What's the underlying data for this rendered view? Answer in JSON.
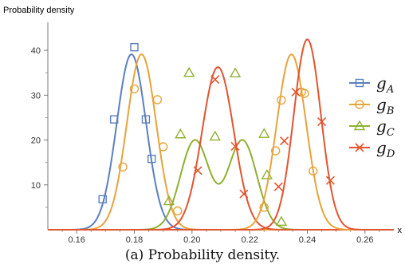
{
  "chart_data": {
    "type": "line",
    "ylabel": "Probability density",
    "xlabel": "x",
    "xlim": [
      0.15,
      0.27
    ],
    "ylim": [
      0,
      45
    ],
    "xticks": [
      "0.16",
      "0.18",
      "0.20",
      "0.22",
      "0.24",
      "0.26"
    ],
    "xtick_values": [
      0.16,
      0.18,
      0.2,
      0.22,
      0.24,
      0.26
    ],
    "yticks": [
      "10",
      "20",
      "30",
      "40"
    ],
    "ytick_values": [
      10,
      20,
      30,
      40
    ],
    "legend_position": "right",
    "series": [
      {
        "name": "g",
        "subscript": "A",
        "color": "#5b7fbf",
        "marker": "square",
        "curve": [
          {
            "mu": 0.179,
            "sigma": 0.0051,
            "weight": 1.0
          }
        ],
        "markers": [
          [
            0.169,
            6.8
          ],
          [
            0.173,
            24.6
          ],
          [
            0.18,
            40.7
          ],
          [
            0.184,
            24.6
          ],
          [
            0.186,
            15.8
          ]
        ]
      },
      {
        "name": "g",
        "subscript": "B",
        "color": "#e8a33a",
        "marker": "circle",
        "curve": [
          {
            "mu": 0.1825,
            "sigma": 0.0051,
            "weight": 1.0
          }
        ],
        "markers": [
          [
            0.176,
            14.0
          ],
          [
            0.18,
            31.4
          ],
          [
            0.188,
            29.0
          ],
          [
            0.19,
            18.5
          ],
          [
            0.195,
            4.2
          ],
          [
            0.225,
            5.0
          ],
          [
            0.229,
            17.6
          ],
          [
            0.231,
            28.9
          ],
          [
            0.238,
            30.7
          ],
          [
            0.239,
            30.4
          ],
          [
            0.242,
            13.1
          ]
        ]
      },
      {
        "name": "g",
        "subscript": "C",
        "color": "#8fb032",
        "marker": "triangle",
        "curve": [
          {
            "mu": 0.201,
            "sigma": 0.005,
            "weight": 0.5
          },
          {
            "mu": 0.2175,
            "sigma": 0.005,
            "weight": 0.5
          }
        ],
        "markers": [
          [
            0.192,
            6.4
          ],
          [
            0.196,
            21.3
          ],
          [
            0.199,
            35.0
          ],
          [
            0.208,
            20.8
          ],
          [
            0.215,
            34.9
          ],
          [
            0.225,
            21.4
          ],
          [
            0.226,
            12.2
          ],
          [
            0.231,
            1.8
          ]
        ]
      },
      {
        "name": "g",
        "subscript": "D",
        "color": "#e2542f",
        "marker": "x",
        "curve": [
          {
            "mu": 0.209,
            "sigma": 0.0055,
            "weight": 1.0
          }
        ],
        "markers": [
          [
            0.202,
            13.2
          ],
          [
            0.208,
            33.5
          ],
          [
            0.215,
            18.6
          ],
          [
            0.218,
            8.0
          ],
          [
            0.23,
            9.6
          ],
          [
            0.232,
            19.8
          ],
          [
            0.236,
            30.7
          ],
          [
            0.245,
            24.1
          ],
          [
            0.248,
            11.0
          ]
        ]
      }
    ],
    "extra_curves": [
      {
        "series": "B",
        "curve": [
          {
            "mu": 0.2345,
            "sigma": 0.0051,
            "weight": 1.0
          }
        ]
      },
      {
        "series": "D",
        "curve": [
          {
            "mu": 0.24,
            "sigma": 0.0047,
            "weight": 1.0
          }
        ]
      }
    ]
  },
  "caption": "(a) Probability density."
}
